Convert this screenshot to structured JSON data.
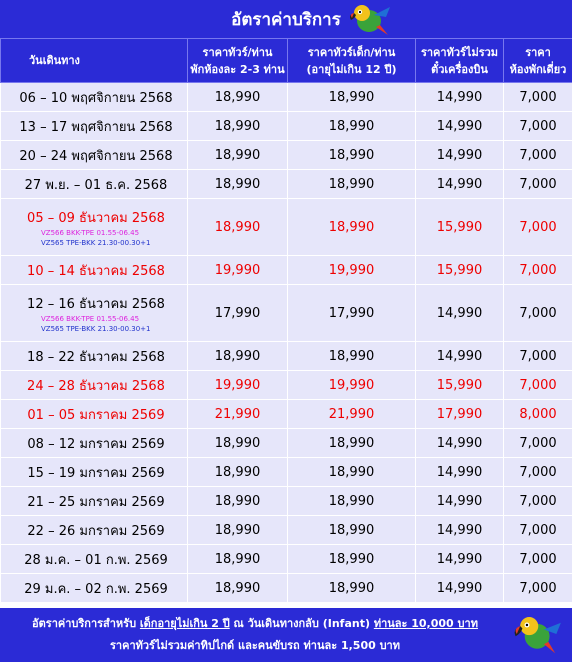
{
  "title": "อัตราค่าบริการ",
  "headers": {
    "date": "วันเดินทาง",
    "adult_line1": "ราคาทัวร์/ท่าน",
    "adult_line2": "พักห้องละ 2-3 ท่าน",
    "child_line1": "ราคาทัวร์เด็ก/ท่าน",
    "child_line2": "(อายุไม่เกิน 12 ปี)",
    "noticket_line1": "ราคาทัวร์ไม่รวม",
    "noticket_line2": "ตั๋วเครื่องบิน",
    "single_line1": "ราคา",
    "single_line2": "ห้องพักเดี่ยว"
  },
  "rows": [
    {
      "date": "06 – 10 พฤศจิกายน 2568",
      "adult": "18,990",
      "child": "18,990",
      "noticket": "14,990",
      "single": "7,000",
      "red": false
    },
    {
      "date": "13 – 17 พฤศจิกายน 2568",
      "adult": "18,990",
      "child": "18,990",
      "noticket": "14,990",
      "single": "7,000",
      "red": false
    },
    {
      "date": "20 – 24 พฤศจิกายน 2568",
      "adult": "18,990",
      "child": "18,990",
      "noticket": "14,990",
      "single": "7,000",
      "red": false
    },
    {
      "date": "27 พ.ย. – 01 ธ.ค. 2568",
      "adult": "18,990",
      "child": "18,990",
      "noticket": "14,990",
      "single": "7,000",
      "red": false
    },
    {
      "date": "05 – 09 ธันวาคม 2568",
      "flight_out": "VZ566 BKK-TPE 01.55-06.45",
      "flight_ret": "VZ565 TPE-BKK 21.30-00.30+1",
      "adult": "18,990",
      "child": "18,990",
      "noticket": "15,990",
      "single": "7,000",
      "red": true
    },
    {
      "date": "10 – 14 ธันวาคม 2568",
      "adult": "19,990",
      "child": "19,990",
      "noticket": "15,990",
      "single": "7,000",
      "red": true
    },
    {
      "date": "12 – 16 ธันวาคม 2568",
      "flight_out": "VZ566 BKK-TPE 01.55-06.45",
      "flight_ret": "VZ565 TPE-BKK 21.30-00.30+1",
      "adult": "17,990",
      "child": "17,990",
      "noticket": "14,990",
      "single": "7,000",
      "red": false
    },
    {
      "date": "18 – 22 ธันวาคม 2568",
      "adult": "18,990",
      "child": "18,990",
      "noticket": "14,990",
      "single": "7,000",
      "red": false
    },
    {
      "date": "24 – 28 ธันวาคม 2568",
      "adult": "19,990",
      "child": "19,990",
      "noticket": "15,990",
      "single": "7,000",
      "red": true
    },
    {
      "date": "01 – 05 มกราคม 2569",
      "adult": "21,990",
      "child": "21,990",
      "noticket": "17,990",
      "single": "8,000",
      "red": true
    },
    {
      "date": "08 – 12 มกราคม 2569",
      "adult": "18,990",
      "child": "18,990",
      "noticket": "14,990",
      "single": "7,000",
      "red": false
    },
    {
      "date": "15 – 19 มกราคม 2569",
      "adult": "18,990",
      "child": "18,990",
      "noticket": "14,990",
      "single": "7,000",
      "red": false
    },
    {
      "date": "21 – 25 มกราคม 2569",
      "adult": "18,990",
      "child": "18,990",
      "noticket": "14,990",
      "single": "7,000",
      "red": false
    },
    {
      "date": "22 – 26 มกราคม 2569",
      "adult": "18,990",
      "child": "18,990",
      "noticket": "14,990",
      "single": "7,000",
      "red": false
    },
    {
      "date": "28 ม.ค. – 01 ก.พ. 2569",
      "adult": "18,990",
      "child": "18,990",
      "noticket": "14,990",
      "single": "7,000",
      "red": false
    },
    {
      "date": "29 ม.ค. – 02 ก.พ. 2569",
      "adult": "18,990",
      "child": "18,990",
      "noticket": "14,990",
      "single": "7,000",
      "red": false
    }
  ],
  "footer": {
    "line1_prefix": "อัตราค่าบริการสำหรับ ",
    "line1_child": "เด็กอายุไม่เกิน 2 ปี",
    "line1_mid": " ณ วันเดินทางกลับ (Infant) ",
    "line1_price": "ท่านละ 10,000 บาท",
    "line2": "ราคาทัวร์ไม่รวมค่าทิปไกด์ และคนขับรถ ท่านละ 1,500 บาท"
  },
  "colors": {
    "header_bg": "#2b2bd6",
    "row_bg": "#e6e6fa",
    "highlight_text": "#ee0000",
    "flight_out": "#dd22dd",
    "flight_ret": "#2233cc"
  },
  "icons": {
    "mascot": "parrot-icon"
  }
}
